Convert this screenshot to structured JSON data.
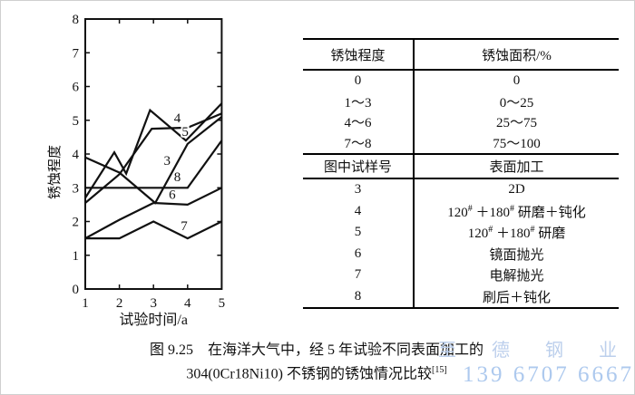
{
  "chart_data": {
    "type": "line",
    "title": "",
    "xlabel": "试验时间/a",
    "ylabel": "锈蚀程度",
    "xlim": [
      1,
      5
    ],
    "ylim": [
      0,
      8
    ],
    "x_ticks": [
      1,
      2,
      3,
      4,
      5
    ],
    "y_ticks": [
      0,
      1,
      2,
      3,
      4,
      5,
      6,
      7,
      8
    ],
    "grid": false,
    "line_color": "#111111",
    "series": [
      {
        "name": "3",
        "label_x": 3.4,
        "label_y": 3.78,
        "points": [
          [
            1,
            3.9
          ],
          [
            2,
            3.45
          ],
          [
            3.05,
            2.55
          ],
          [
            4,
            4.3
          ],
          [
            5,
            5.1
          ]
        ]
      },
      {
        "name": "4",
        "label_x": 3.7,
        "label_y": 5.05,
        "points": [
          [
            1,
            2.55
          ],
          [
            2,
            3.4
          ],
          [
            2.95,
            4.75
          ],
          [
            4,
            4.78
          ],
          [
            5,
            5.2
          ]
        ]
      },
      {
        "name": "5",
        "label_x": 3.93,
        "label_y": 4.65,
        "points": [
          [
            1,
            2.7
          ],
          [
            1.85,
            4.05
          ],
          [
            2.2,
            3.42
          ],
          [
            2.9,
            5.3
          ],
          [
            3.95,
            4.4
          ],
          [
            5,
            5.5
          ]
        ]
      },
      {
        "name": "6",
        "label_x": 3.55,
        "label_y": 2.78,
        "points": [
          [
            1,
            1.5
          ],
          [
            2,
            2.05
          ],
          [
            3,
            2.55
          ],
          [
            4,
            2.5
          ],
          [
            5,
            3.0
          ]
        ]
      },
      {
        "name": "7",
        "label_x": 3.9,
        "label_y": 1.85,
        "points": [
          [
            1,
            1.5
          ],
          [
            2,
            1.5
          ],
          [
            3,
            2.0
          ],
          [
            4,
            1.5
          ],
          [
            5,
            2.0
          ]
        ]
      },
      {
        "name": "8",
        "label_x": 3.7,
        "label_y": 3.3,
        "points": [
          [
            1,
            3.0
          ],
          [
            4,
            3.0
          ],
          [
            5,
            4.4
          ]
        ]
      }
    ]
  },
  "rust_table": {
    "section1": {
      "headers": [
        "锈蚀程度",
        "锈蚀面积/%"
      ],
      "rows": [
        [
          "0",
          "0"
        ],
        [
          "1～3",
          "0～25"
        ],
        [
          "4～6",
          "25～75"
        ],
        [
          "7～8",
          "75～100"
        ]
      ]
    },
    "section2": {
      "headers": [
        "图中试样号",
        "表面加工"
      ],
      "rows": [
        {
          "no": "3",
          "surface": [
            "2D"
          ]
        },
        {
          "no": "4",
          "surface": [
            "120",
            "#",
            " ＋180",
            "#",
            " 研磨＋钝化"
          ]
        },
        {
          "no": "5",
          "surface": [
            "120",
            "#",
            " ＋180",
            "#",
            " 研磨"
          ]
        },
        {
          "no": "6",
          "surface": [
            "镜面抛光"
          ]
        },
        {
          "no": "7",
          "surface": [
            "电解抛光"
          ]
        },
        {
          "no": "8",
          "surface": [
            "刷后＋钝化"
          ]
        }
      ]
    }
  },
  "figure": {
    "caption_line1": "图 9.25　在海洋大气中，经 5 年试验不同表面加工的",
    "caption_line2": "304(0Cr18Ni10) 不锈钢的锈蚀情况比较",
    "caption_ref": "[15]"
  },
  "watermark": {
    "line1": "至 德 钢 业",
    "line2": "139 6707 6667",
    "color": "#bccfec"
  }
}
